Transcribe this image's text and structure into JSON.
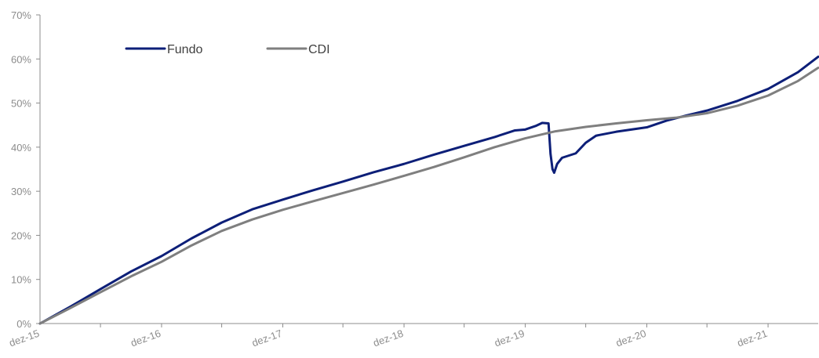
{
  "chart_data": {
    "type": "line",
    "title": "",
    "xlabel": "",
    "ylabel": "",
    "y_unit": "%",
    "ylim": [
      0,
      70
    ],
    "y_ticks": [
      0,
      10,
      20,
      30,
      40,
      50,
      60,
      70
    ],
    "y_tick_labels": [
      "0%",
      "10%",
      "20%",
      "30%",
      "40%",
      "50%",
      "60%",
      "70%"
    ],
    "xlim": [
      "2015-12-31",
      "2022-05-31"
    ],
    "x_tick_dates": [
      "2015-12-31",
      "2016-12-31",
      "2017-12-31",
      "2018-12-31",
      "2019-12-31",
      "2020-12-31",
      "2021-12-31"
    ],
    "x_tick_labels": [
      "dez-15",
      "dez-16",
      "dez-17",
      "dez-18",
      "dez-19",
      "dez-20",
      "dez-21"
    ],
    "grid": false,
    "legend_position": "top-left",
    "series": [
      {
        "name": "Fundo",
        "color": "#0d1f78",
        "points": [
          [
            "2015-12-31",
            0.0
          ],
          [
            "2016-03-31",
            3.8
          ],
          [
            "2016-06-30",
            7.8
          ],
          [
            "2016-09-30",
            11.8
          ],
          [
            "2016-12-31",
            15.3
          ],
          [
            "2017-03-31",
            19.3
          ],
          [
            "2017-06-30",
            22.9
          ],
          [
            "2017-09-30",
            25.9
          ],
          [
            "2017-12-31",
            28.1
          ],
          [
            "2018-03-31",
            30.2
          ],
          [
            "2018-06-30",
            32.2
          ],
          [
            "2018-09-30",
            34.3
          ],
          [
            "2018-12-31",
            36.2
          ],
          [
            "2019-03-31",
            38.3
          ],
          [
            "2019-06-30",
            40.3
          ],
          [
            "2019-09-30",
            42.3
          ],
          [
            "2019-11-30",
            43.8
          ],
          [
            "2019-12-31",
            44.0
          ],
          [
            "2020-01-31",
            44.8
          ],
          [
            "2020-02-20",
            45.5
          ],
          [
            "2020-03-10",
            45.4
          ],
          [
            "2020-03-16",
            38.5
          ],
          [
            "2020-03-22",
            35.0
          ],
          [
            "2020-03-27",
            34.2
          ],
          [
            "2020-04-05",
            36.2
          ],
          [
            "2020-04-20",
            37.6
          ],
          [
            "2020-05-31",
            38.6
          ],
          [
            "2020-06-30",
            41.0
          ],
          [
            "2020-07-31",
            42.6
          ],
          [
            "2020-09-30",
            43.5
          ],
          [
            "2020-12-31",
            44.5
          ],
          [
            "2021-02-28",
            46.0
          ],
          [
            "2021-04-30",
            47.2
          ],
          [
            "2021-06-30",
            48.3
          ],
          [
            "2021-09-30",
            50.5
          ],
          [
            "2021-12-31",
            53.2
          ],
          [
            "2022-03-31",
            57.0
          ],
          [
            "2022-05-31",
            60.5
          ]
        ]
      },
      {
        "name": "CDI",
        "color": "#7f7f7f",
        "points": [
          [
            "2015-12-31",
            0.0
          ],
          [
            "2016-03-31",
            3.5
          ],
          [
            "2016-06-30",
            7.1
          ],
          [
            "2016-09-30",
            10.7
          ],
          [
            "2016-12-31",
            14.0
          ],
          [
            "2017-03-31",
            17.7
          ],
          [
            "2017-06-30",
            21.0
          ],
          [
            "2017-09-30",
            23.6
          ],
          [
            "2017-12-31",
            25.8
          ],
          [
            "2018-03-31",
            27.7
          ],
          [
            "2018-06-30",
            29.6
          ],
          [
            "2018-09-30",
            31.5
          ],
          [
            "2018-12-31",
            33.5
          ],
          [
            "2019-03-31",
            35.5
          ],
          [
            "2019-06-30",
            37.7
          ],
          [
            "2019-09-30",
            40.0
          ],
          [
            "2019-12-31",
            42.0
          ],
          [
            "2020-03-31",
            43.6
          ],
          [
            "2020-06-30",
            44.6
          ],
          [
            "2020-09-30",
            45.4
          ],
          [
            "2020-12-31",
            46.1
          ],
          [
            "2021-03-31",
            46.7
          ],
          [
            "2021-06-30",
            47.7
          ],
          [
            "2021-09-30",
            49.4
          ],
          [
            "2021-12-31",
            51.7
          ],
          [
            "2022-03-31",
            55.0
          ],
          [
            "2022-05-31",
            58.0
          ]
        ]
      }
    ]
  }
}
